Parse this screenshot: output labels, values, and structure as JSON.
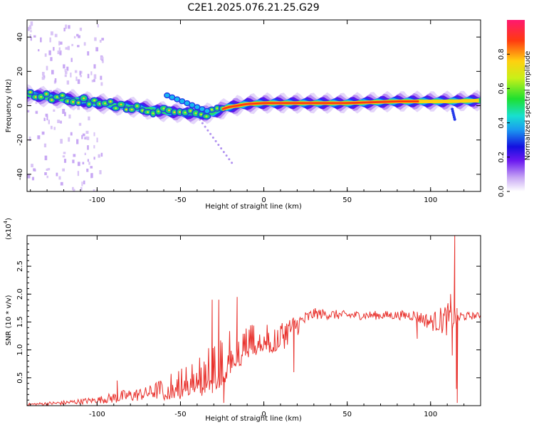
{
  "title": "C2E1.2025.076.21.25.G29",
  "chart_data": [
    {
      "type": "heatmap",
      "xlabel": "Height of straight line (km)",
      "ylabel": "Frequency (Hz)",
      "xlim": [
        -142,
        130
      ],
      "ylim": [
        -50,
        50
      ],
      "xticks": [
        -100,
        -50,
        0,
        50,
        100
      ],
      "yticks": [
        -40,
        -20,
        0,
        20,
        40
      ],
      "colorbar": {
        "label": "Normalized spectral amplitude",
        "range": [
          0,
          1
        ],
        "ticks": [
          "0.0",
          "0.2",
          "0.4",
          "0.6",
          "0.8"
        ],
        "tick_values": [
          0,
          0.2,
          0.4,
          0.6,
          0.8
        ]
      },
      "ridge": [
        {
          "x": -142,
          "y": 6.5
        },
        {
          "x": -130,
          "y": 5
        },
        {
          "x": -115,
          "y": 3.5
        },
        {
          "x": -100,
          "y": 1.5
        },
        {
          "x": -85,
          "y": 0
        },
        {
          "x": -70,
          "y": -2
        },
        {
          "x": -60,
          "y": -3.5
        },
        {
          "x": -50,
          "y": -4
        },
        {
          "x": -40,
          "y": -5
        },
        {
          "x": -30,
          "y": -4
        },
        {
          "x": -22,
          "y": -1
        },
        {
          "x": -10,
          "y": 1
        },
        {
          "x": 0,
          "y": 1.5
        },
        {
          "x": 20,
          "y": 1.5
        },
        {
          "x": 50,
          "y": 1.5
        },
        {
          "x": 80,
          "y": 2.5
        },
        {
          "x": 100,
          "y": 2.5
        },
        {
          "x": 110,
          "y": 2.5
        },
        {
          "x": 130,
          "y": 3
        }
      ]
    },
    {
      "type": "line",
      "xlabel": "Height of straight line (km)",
      "ylabel": "SNR (10 * v/v)",
      "yscale_label": "(x10",
      "yscale_exp": "4",
      "xlim": [
        -142,
        130
      ],
      "ylim": [
        0,
        3.05
      ],
      "xticks": [
        -100,
        -50,
        0,
        50,
        100
      ],
      "yticks": [
        "0.5",
        "1.0",
        "1.5",
        "2.0",
        "2.5"
      ],
      "ytick_values": [
        0.5,
        1.0,
        1.5,
        2.0,
        2.5
      ],
      "series": [
        {
          "color": "#e8302b",
          "envelope": [
            {
              "x": -142,
              "mean": 0.02,
              "amp": 0.02
            },
            {
              "x": -120,
              "mean": 0.05,
              "amp": 0.04
            },
            {
              "x": -100,
              "mean": 0.1,
              "amp": 0.06
            },
            {
              "x": -85,
              "mean": 0.16,
              "amp": 0.12
            },
            {
              "x": -70,
              "mean": 0.22,
              "amp": 0.12
            },
            {
              "x": -55,
              "mean": 0.35,
              "amp": 0.25
            },
            {
              "x": -40,
              "mean": 0.5,
              "amp": 0.35
            },
            {
              "x": -30,
              "mean": 0.75,
              "amp": 0.55
            },
            {
              "x": -20,
              "mean": 0.95,
              "amp": 0.45
            },
            {
              "x": -10,
              "mean": 1.15,
              "amp": 0.3
            },
            {
              "x": 0,
              "mean": 1.2,
              "amp": 0.25
            },
            {
              "x": 10,
              "mean": 1.25,
              "amp": 0.3
            },
            {
              "x": 20,
              "mean": 1.45,
              "amp": 0.2
            },
            {
              "x": 30,
              "mean": 1.65,
              "amp": 0.1
            },
            {
              "x": 50,
              "mean": 1.62,
              "amp": 0.08
            },
            {
              "x": 80,
              "mean": 1.62,
              "amp": 0.08
            },
            {
              "x": 90,
              "mean": 1.62,
              "amp": 0.1
            },
            {
              "x": 100,
              "mean": 1.5,
              "amp": 0.15
            },
            {
              "x": 110,
              "mean": 1.55,
              "amp": 0.3
            },
            {
              "x": 120,
              "mean": 1.6,
              "amp": 0.08
            },
            {
              "x": 130,
              "mean": 1.62,
              "amp": 0.05
            }
          ],
          "spikes": [
            {
              "x": -88,
              "y": 0.45
            },
            {
              "x": -31,
              "y": 1.9
            },
            {
              "x": -27,
              "y": 1.9
            },
            {
              "x": -24,
              "y": 0.05
            },
            {
              "x": -16,
              "y": 1.95
            },
            {
              "x": 18,
              "y": 0.6
            },
            {
              "x": 92,
              "y": 1.2
            },
            {
              "x": 112,
              "y": 2.0
            },
            {
              "x": 113,
              "y": 0.9
            },
            {
              "x": 114.5,
              "y": 3.05
            },
            {
              "x": 115.5,
              "y": 0.3
            },
            {
              "x": 116,
              "y": 0.05
            }
          ]
        }
      ]
    }
  ]
}
